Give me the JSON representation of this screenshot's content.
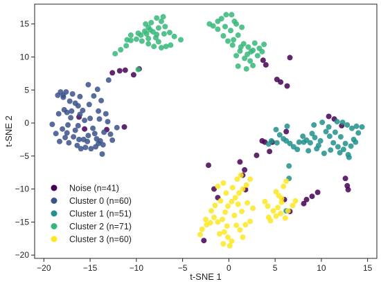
{
  "chart_data": {
    "type": "scatter",
    "title": "",
    "xlabel": "t-SNE 1",
    "ylabel": "t-SNE 2",
    "xlim": [
      -21,
      16
    ],
    "ylim": [
      -20.5,
      18
    ],
    "xticks": [
      -20,
      -15,
      -10,
      -5,
      0,
      5,
      10,
      15
    ],
    "yticks": [
      -20,
      -15,
      -10,
      -5,
      0,
      5,
      10,
      15
    ],
    "grid": false,
    "legend_position": "lower-left",
    "series": [
      {
        "name": "Noise (n=41)",
        "color": "#440154",
        "points": [
          [
            -16.2,
            0.9
          ],
          [
            -15.6,
            -0.9
          ],
          [
            -13.2,
            -1.0
          ],
          [
            -11.3,
            -0.6
          ],
          [
            -12.6,
            7.6
          ],
          [
            -11.8,
            7.9
          ],
          [
            -11.2,
            8.0
          ],
          [
            -9.7,
            8.2
          ],
          [
            -10.3,
            7.3
          ],
          [
            -2.2,
            -6.4
          ],
          [
            -1.6,
            -10.0
          ],
          [
            -1.2,
            -11.3
          ],
          [
            -2.7,
            -17.8
          ],
          [
            1.2,
            -5.9
          ],
          [
            1.7,
            -7.1
          ],
          [
            1.5,
            -7.9
          ],
          [
            1.8,
            -10.1
          ],
          [
            3.0,
            -4.9
          ],
          [
            3.6,
            -2.7
          ],
          [
            3.9,
            -2.9
          ],
          [
            4.4,
            -4.3
          ],
          [
            4.7,
            -2.9
          ],
          [
            6.2,
            -1.3
          ],
          [
            6.0,
            -11.6
          ],
          [
            6.6,
            -13.4
          ],
          [
            6.6,
            9.9
          ],
          [
            5.2,
            6.6
          ],
          [
            5.6,
            6.2
          ],
          [
            6.3,
            5.6
          ],
          [
            4.0,
            8.8
          ],
          [
            3.7,
            9.5
          ],
          [
            8.1,
            -12.2
          ],
          [
            8.4,
            -11.6
          ],
          [
            9.0,
            -11.1
          ],
          [
            9.6,
            -10.5
          ],
          [
            10.8,
            1.0
          ],
          [
            11.4,
            0.6
          ],
          [
            12.2,
            -0.4
          ],
          [
            12.6,
            -8.4
          ],
          [
            12.8,
            -9.5
          ],
          [
            12.9,
            -10.1
          ]
        ]
      },
      {
        "name": "Cluster 0 (n=60)",
        "color": "#3b528b",
        "points": [
          [
            -19.1,
            -0.2
          ],
          [
            -18.0,
            -0.9
          ],
          [
            -17.4,
            -0.3
          ],
          [
            -16.8,
            -2.1
          ],
          [
            -15.7,
            -2.5
          ],
          [
            -14.3,
            -2.4
          ],
          [
            -18.2,
            4.7
          ],
          [
            -17.6,
            4.7
          ],
          [
            -16.9,
            4.4
          ],
          [
            -15.2,
            5.8
          ],
          [
            -14.2,
            5.1
          ],
          [
            -13.0,
            6.5
          ],
          [
            -17.9,
            3.9
          ],
          [
            -17.2,
            3.3
          ],
          [
            -16.3,
            2.6
          ],
          [
            -15.1,
            2.8
          ],
          [
            -14.1,
            1.8
          ],
          [
            -13.3,
            1.4
          ],
          [
            -17.0,
            1.8
          ],
          [
            -16.1,
            1.3
          ],
          [
            -15.0,
            0.7
          ],
          [
            -14.0,
            0.6
          ],
          [
            -13.1,
            0.2
          ],
          [
            -18.7,
            -1.6
          ],
          [
            -17.7,
            -2.2
          ],
          [
            -16.4,
            -3.4
          ],
          [
            -15.5,
            -3.7
          ],
          [
            -14.4,
            -3.6
          ],
          [
            -13.6,
            -3.3
          ],
          [
            -13.7,
            -4.7
          ],
          [
            -12.6,
            -2.6
          ],
          [
            -18.4,
            1.4
          ],
          [
            -17.5,
            1.6
          ],
          [
            -16.6,
            -1.1
          ],
          [
            -15.2,
            -1.9
          ],
          [
            -14.7,
            -0.8
          ],
          [
            -13.5,
            -1.4
          ],
          [
            -18.3,
            -2.8
          ],
          [
            -17.3,
            -3.0
          ],
          [
            -16.3,
            -0.4
          ],
          [
            -15.6,
            0.4
          ],
          [
            -14.5,
            -1.6
          ],
          [
            -13.9,
            -2.7
          ],
          [
            -12.1,
            -0.7
          ],
          [
            -16.0,
            -3.9
          ],
          [
            -14.9,
            -3.9
          ],
          [
            -17.1,
            0.8
          ],
          [
            -16.6,
            3.0
          ],
          [
            -15.8,
            1.9
          ],
          [
            -17.8,
            2.0
          ],
          [
            -18.5,
            4.2
          ],
          [
            -16.1,
            4.0
          ],
          [
            -14.6,
            4.1
          ],
          [
            -13.8,
            3.4
          ],
          [
            -12.8,
            -1.7
          ],
          [
            -15.3,
            -2.8
          ],
          [
            -14.1,
            -3.1
          ],
          [
            -16.2,
            -2.5
          ],
          [
            -17.5,
            -1.5
          ],
          [
            -17.9,
            4.2
          ]
        ]
      },
      {
        "name": "Cluster 1 (n=51)",
        "color": "#21918c",
        "points": [
          [
            5.1,
            -1.0
          ],
          [
            5.5,
            -1.8
          ],
          [
            5.9,
            -2.4
          ],
          [
            6.2,
            -2.7
          ],
          [
            6.6,
            -3.1
          ],
          [
            7.0,
            -3.6
          ],
          [
            7.4,
            -4.0
          ],
          [
            6.3,
            -0.5
          ],
          [
            5.2,
            -3.0
          ],
          [
            4.6,
            -2.7
          ],
          [
            6.5,
            -6.5
          ],
          [
            4.3,
            -3.2
          ],
          [
            8.0,
            -2.0
          ],
          [
            8.4,
            -2.6
          ],
          [
            8.8,
            -3.0
          ],
          [
            9.3,
            -2.2
          ],
          [
            9.9,
            -2.7
          ],
          [
            10.5,
            -1.3
          ],
          [
            10.9,
            -2.0
          ],
          [
            11.3,
            -3.0
          ],
          [
            11.8,
            -3.6
          ],
          [
            12.4,
            -4.0
          ],
          [
            12.9,
            -4.8
          ],
          [
            11.0,
            -4.1
          ],
          [
            10.3,
            -4.6
          ],
          [
            9.7,
            -3.4
          ],
          [
            9.0,
            -1.6
          ],
          [
            8.1,
            -2.9
          ],
          [
            7.6,
            -2.9
          ],
          [
            13.2,
            -3.5
          ],
          [
            13.7,
            -2.9
          ],
          [
            12.1,
            -2.1
          ],
          [
            11.5,
            -1.4
          ],
          [
            10.8,
            -0.6
          ],
          [
            10.1,
            0.1
          ],
          [
            11.7,
            0.2
          ],
          [
            12.3,
            0.1
          ],
          [
            12.8,
            -0.3
          ],
          [
            13.3,
            -0.8
          ],
          [
            13.8,
            -0.5
          ],
          [
            14.4,
            -0.6
          ],
          [
            14.0,
            -1.5
          ],
          [
            13.5,
            -2.5
          ],
          [
            12.6,
            -3.1
          ],
          [
            12.0,
            -4.5
          ],
          [
            13.0,
            -5.2
          ],
          [
            9.5,
            -3.9
          ],
          [
            8.6,
            -4.2
          ],
          [
            9.2,
            -0.3
          ],
          [
            6.5,
            -8.4
          ],
          [
            6.2,
            -13.3
          ]
        ]
      },
      {
        "name": "Cluster 2 (n=71)",
        "color": "#35b779",
        "points": [
          [
            -12.3,
            10.5
          ],
          [
            -11.7,
            11.1
          ],
          [
            -11.1,
            11.7
          ],
          [
            -10.6,
            12.5
          ],
          [
            -10.0,
            12.7
          ],
          [
            -9.5,
            13.3
          ],
          [
            -9.1,
            13.9
          ],
          [
            -8.7,
            14.5
          ],
          [
            -8.2,
            13.8
          ],
          [
            -7.9,
            12.9
          ],
          [
            -7.6,
            14.4
          ],
          [
            -7.3,
            15.4
          ],
          [
            -6.9,
            14.6
          ],
          [
            -6.4,
            13.7
          ],
          [
            -5.9,
            13.1
          ],
          [
            -5.2,
            12.6
          ],
          [
            -8.7,
            12.0
          ],
          [
            -8.1,
            11.6
          ],
          [
            -7.6,
            12.3
          ],
          [
            -7.3,
            11.4
          ],
          [
            -6.8,
            11.6
          ],
          [
            -6.3,
            11.8
          ],
          [
            -9.8,
            13.6
          ],
          [
            -9.4,
            12.4
          ],
          [
            -8.9,
            13.5
          ],
          [
            -8.4,
            15.2
          ],
          [
            -7.8,
            15.9
          ],
          [
            -7.1,
            16.1
          ],
          [
            -9.8,
            8.1
          ],
          [
            -10.6,
            13.3
          ],
          [
            -11.0,
            12.6
          ],
          [
            -8.5,
            14.1
          ],
          [
            -9.0,
            15.0
          ],
          [
            -7.0,
            13.5
          ],
          [
            -7.8,
            13.4
          ],
          [
            -8.7,
            12.8
          ],
          [
            -2.1,
            15.0
          ],
          [
            -1.7,
            14.7
          ],
          [
            -1.2,
            15.4
          ],
          [
            -0.8,
            15.8
          ],
          [
            -0.3,
            16.4
          ],
          [
            0.3,
            16.4
          ],
          [
            0.6,
            15.4
          ],
          [
            -0.4,
            14.6
          ],
          [
            0.2,
            14.0
          ],
          [
            -0.6,
            13.2
          ],
          [
            0.5,
            12.6
          ],
          [
            1.0,
            13.3
          ],
          [
            1.6,
            12.0
          ],
          [
            2.1,
            11.5
          ],
          [
            2.6,
            11.0
          ],
          [
            3.1,
            10.2
          ],
          [
            2.8,
            12.1
          ],
          [
            3.3,
            11.3
          ],
          [
            3.6,
            10.8
          ],
          [
            1.2,
            10.9
          ],
          [
            0.8,
            10.2
          ],
          [
            1.7,
            9.8
          ],
          [
            2.3,
            9.4
          ],
          [
            1.0,
            8.6
          ],
          [
            1.9,
            8.2
          ],
          [
            2.6,
            8.7
          ],
          [
            0.4,
            11.8
          ],
          [
            -0.1,
            12.4
          ],
          [
            1.3,
            11.5
          ],
          [
            2.0,
            10.4
          ],
          [
            -1.2,
            14.2
          ],
          [
            0.8,
            15.0
          ],
          [
            3.8,
            11.9
          ],
          [
            1.4,
            14.5
          ],
          [
            2.4,
            10.8
          ]
        ]
      },
      {
        "name": "Cluster 3 (n=60)",
        "color": "#fde725",
        "points": [
          [
            -3.1,
            -16.9
          ],
          [
            -2.9,
            -16.1
          ],
          [
            -2.4,
            -15.4
          ],
          [
            -2.0,
            -15.1
          ],
          [
            -1.6,
            -14.3
          ],
          [
            -1.2,
            -15.0
          ],
          [
            -0.7,
            -14.6
          ],
          [
            -0.4,
            -13.5
          ],
          [
            -0.1,
            -12.6
          ],
          [
            0.3,
            -11.9
          ],
          [
            0.7,
            -11.3
          ],
          [
            1.1,
            -10.6
          ],
          [
            1.5,
            -10.0
          ],
          [
            1.9,
            -9.4
          ],
          [
            2.3,
            -8.5
          ],
          [
            -0.6,
            -9.1
          ],
          [
            -1.2,
            -9.6
          ],
          [
            -0.3,
            -10.6
          ],
          [
            0.4,
            -9.8
          ],
          [
            0.9,
            -8.5
          ],
          [
            1.3,
            -7.9
          ],
          [
            -0.9,
            -11.8
          ],
          [
            -1.5,
            -12.5
          ],
          [
            -0.5,
            -16.5
          ],
          [
            -0.1,
            -17.3
          ],
          [
            0.3,
            -17.9
          ],
          [
            -0.6,
            -18.3
          ],
          [
            0.1,
            -18.6
          ],
          [
            1.2,
            -16.2
          ],
          [
            1.5,
            -17.3
          ],
          [
            0.8,
            -15.5
          ],
          [
            1.8,
            -15.4
          ],
          [
            2.3,
            -14.9
          ],
          [
            2.0,
            -12.1
          ],
          [
            2.6,
            -12.9
          ],
          [
            -1.9,
            -13.3
          ],
          [
            -2.5,
            -14.6
          ],
          [
            -1.0,
            -16.8
          ],
          [
            0.6,
            -14.0
          ],
          [
            1.4,
            -13.4
          ],
          [
            1.0,
            -12.3
          ],
          [
            -0.2,
            -15.6
          ],
          [
            3.9,
            -11.9
          ],
          [
            4.2,
            -12.6
          ],
          [
            4.8,
            -13.3
          ],
          [
            4.3,
            -14.3
          ],
          [
            4.5,
            -14.8
          ],
          [
            5.1,
            -14.1
          ],
          [
            5.6,
            -13.7
          ],
          [
            6.1,
            -14.4
          ],
          [
            6.4,
            -13.3
          ],
          [
            6.9,
            -12.5
          ],
          [
            7.2,
            -11.8
          ],
          [
            5.7,
            -12.0
          ],
          [
            5.4,
            -11.0
          ],
          [
            5.1,
            -10.4
          ],
          [
            5.9,
            -9.6
          ],
          [
            6.2,
            -8.8
          ],
          [
            5.7,
            -11.4
          ],
          [
            5.3,
            -12.8
          ]
        ]
      }
    ]
  }
}
